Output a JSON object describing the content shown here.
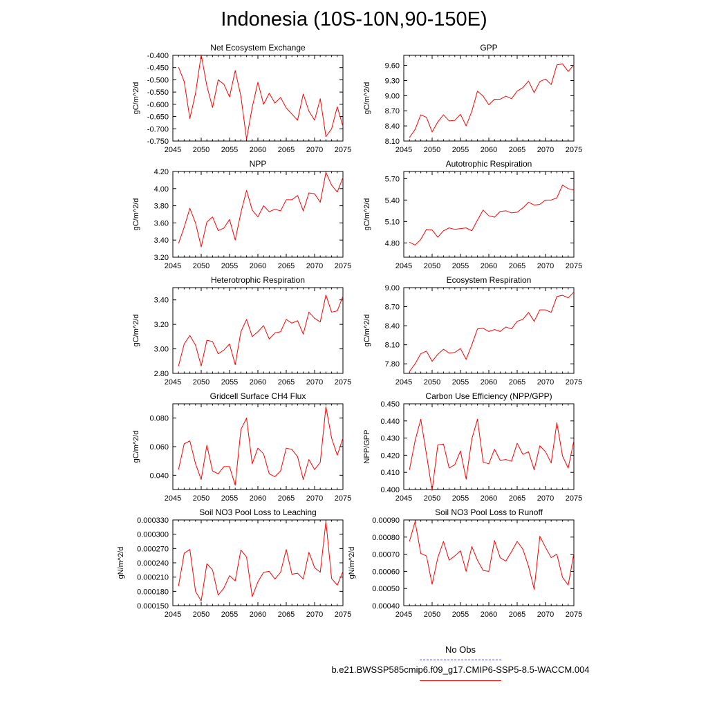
{
  "title": "Indonesia (10S-10N,90-150E)",
  "legend": {
    "obs_label": "No Obs",
    "obs_color": "#3a3ac8",
    "run_label": "b.e21.BWSSP585cmip6.f09_g17.CMIP6-SSP5-8.5-WACCM.004",
    "run_color": "#ff0000"
  },
  "chart_data": [
    {
      "type": "line",
      "title": "Net Ecosystem Exchange",
      "ylabel": "gC/m^2/d",
      "xlabel": "",
      "xlim": [
        2045,
        2075
      ],
      "xticks": [
        "2045",
        "2050",
        "2055",
        "2060",
        "2065",
        "2070",
        "2075"
      ],
      "ylim": [
        -0.75,
        -0.4
      ],
      "yticks": [
        "-0.750",
        "-0.700",
        "-0.650",
        "-0.600",
        "-0.550",
        "-0.500",
        "-0.450",
        "-0.400"
      ],
      "x": [
        2046,
        2047,
        2048,
        2049,
        2050,
        2051,
        2052,
        2053,
        2054,
        2055,
        2056,
        2057,
        2058,
        2059,
        2060,
        2061,
        2062,
        2063,
        2064,
        2065,
        2066,
        2067,
        2068,
        2069,
        2070,
        2071,
        2072,
        2073,
        2074,
        2075
      ],
      "series": [
        {
          "name": "b.e21.BWSSP585cmip6.f09_g17.CMIP6-SSP5-8.5-WACCM.004",
          "values": [
            -0.448,
            -0.507,
            -0.658,
            -0.555,
            -0.398,
            -0.525,
            -0.613,
            -0.5,
            -0.518,
            -0.57,
            -0.462,
            -0.567,
            -0.742,
            -0.612,
            -0.51,
            -0.6,
            -0.555,
            -0.595,
            -0.572,
            -0.615,
            -0.64,
            -0.665,
            -0.558,
            -0.628,
            -0.665,
            -0.577,
            -0.732,
            -0.7,
            -0.61,
            -0.69
          ]
        }
      ]
    },
    {
      "type": "line",
      "title": "GPP",
      "ylabel": "gC/m^2/d",
      "xlabel": "",
      "xlim": [
        2045,
        2075
      ],
      "xticks": [
        "2045",
        "2050",
        "2055",
        "2060",
        "2065",
        "2070",
        "2075"
      ],
      "ylim": [
        8.1,
        9.8
      ],
      "yticks": [
        "8.10",
        "8.40",
        "8.70",
        "9.00",
        "9.30",
        "9.60"
      ],
      "x": [
        2046,
        2047,
        2048,
        2049,
        2050,
        2051,
        2052,
        2053,
        2054,
        2055,
        2056,
        2057,
        2058,
        2059,
        2060,
        2061,
        2062,
        2063,
        2064,
        2065,
        2066,
        2067,
        2068,
        2069,
        2070,
        2071,
        2072,
        2073,
        2074,
        2075
      ],
      "series": [
        {
          "name": "b.e21.BWSSP585cmip6.f09_g17.CMIP6-SSP5-8.5-WACCM.004",
          "values": [
            8.17,
            8.33,
            8.62,
            8.57,
            8.28,
            8.48,
            8.62,
            8.5,
            8.51,
            8.63,
            8.4,
            8.69,
            9.09,
            8.99,
            8.82,
            8.93,
            8.93,
            8.99,
            8.94,
            9.09,
            9.16,
            9.29,
            9.06,
            9.28,
            9.33,
            9.22,
            9.61,
            9.63,
            9.48,
            9.61
          ]
        }
      ]
    },
    {
      "type": "line",
      "title": "NPP",
      "ylabel": "gC/m^2/d",
      "xlabel": "",
      "xlim": [
        2045,
        2075
      ],
      "xticks": [
        "2045",
        "2050",
        "2055",
        "2060",
        "2065",
        "2070",
        "2075"
      ],
      "ylim": [
        3.2,
        4.2
      ],
      "yticks": [
        "3.20",
        "3.40",
        "3.60",
        "3.80",
        "4.00",
        "4.20"
      ],
      "x": [
        2046,
        2047,
        2048,
        2049,
        2050,
        2051,
        2052,
        2053,
        2054,
        2055,
        2056,
        2057,
        2058,
        2059,
        2060,
        2061,
        2062,
        2063,
        2064,
        2065,
        2066,
        2067,
        2068,
        2069,
        2070,
        2071,
        2072,
        2073,
        2074,
        2075
      ],
      "series": [
        {
          "name": "b.e21.BWSSP585cmip6.f09_g17.CMIP6-SSP5-8.5-WACCM.004",
          "values": [
            3.36,
            3.55,
            3.77,
            3.6,
            3.32,
            3.61,
            3.67,
            3.51,
            3.54,
            3.64,
            3.4,
            3.72,
            3.98,
            3.75,
            3.67,
            3.8,
            3.73,
            3.76,
            3.74,
            3.87,
            3.87,
            3.92,
            3.74,
            3.95,
            3.94,
            3.84,
            4.19,
            4.04,
            3.96,
            4.13
          ]
        }
      ]
    },
    {
      "type": "line",
      "title": "Autotrophic Respiration",
      "ylabel": "gC/m^2/d",
      "xlabel": "",
      "xlim": [
        2045,
        2075
      ],
      "xticks": [
        "2045",
        "2050",
        "2055",
        "2060",
        "2065",
        "2070",
        "2075"
      ],
      "ylim": [
        4.6,
        5.8
      ],
      "yticks": [
        "4.80",
        "5.10",
        "5.40",
        "5.70"
      ],
      "x": [
        2046,
        2047,
        2048,
        2049,
        2050,
        2051,
        2052,
        2053,
        2054,
        2055,
        2056,
        2057,
        2058,
        2059,
        2060,
        2061,
        2062,
        2063,
        2064,
        2065,
        2066,
        2067,
        2068,
        2069,
        2070,
        2071,
        2072,
        2073,
        2074,
        2075
      ],
      "series": [
        {
          "name": "b.e21.BWSSP585cmip6.f09_g17.CMIP6-SSP5-8.5-WACCM.004",
          "values": [
            4.81,
            4.77,
            4.85,
            4.99,
            4.98,
            4.88,
            4.97,
            5.01,
            4.99,
            5.0,
            5.01,
            4.97,
            5.12,
            5.26,
            5.18,
            5.16,
            5.24,
            5.25,
            5.22,
            5.23,
            5.29,
            5.37,
            5.33,
            5.34,
            5.4,
            5.4,
            5.43,
            5.61,
            5.56,
            5.54
          ]
        }
      ]
    },
    {
      "type": "line",
      "title": "Heterotrophic Respiration",
      "ylabel": "gC/m^2/d",
      "xlabel": "",
      "xlim": [
        2045,
        2075
      ],
      "xticks": [
        "2045",
        "2050",
        "2055",
        "2060",
        "2065",
        "2070",
        "2075"
      ],
      "ylim": [
        2.8,
        3.5
      ],
      "yticks": [
        "2.80",
        "3.00",
        "3.20",
        "3.40"
      ],
      "x": [
        2046,
        2047,
        2048,
        2049,
        2050,
        2051,
        2052,
        2053,
        2054,
        2055,
        2056,
        2057,
        2058,
        2059,
        2060,
        2061,
        2062,
        2063,
        2064,
        2065,
        2066,
        2067,
        2068,
        2069,
        2070,
        2071,
        2072,
        2073,
        2074,
        2075
      ],
      "series": [
        {
          "name": "b.e21.BWSSP585cmip6.f09_g17.CMIP6-SSP5-8.5-WACCM.004",
          "values": [
            2.86,
            3.04,
            3.11,
            3.03,
            2.86,
            3.07,
            3.06,
            2.96,
            2.99,
            3.04,
            2.87,
            3.14,
            3.24,
            3.1,
            3.14,
            3.19,
            3.08,
            3.13,
            3.14,
            3.24,
            3.21,
            3.23,
            3.12,
            3.3,
            3.25,
            3.22,
            3.44,
            3.3,
            3.31,
            3.43
          ]
        }
      ]
    },
    {
      "type": "line",
      "title": "Ecosystem Respiration",
      "ylabel": "gC/m^2/d",
      "xlabel": "",
      "xlim": [
        2045,
        2075
      ],
      "xticks": [
        "2045",
        "2050",
        "2055",
        "2060",
        "2065",
        "2070",
        "2075"
      ],
      "ylim": [
        7.65,
        9.0
      ],
      "yticks": [
        "7.80",
        "8.10",
        "8.40",
        "8.70",
        "9.00"
      ],
      "x": [
        2046,
        2047,
        2048,
        2049,
        2050,
        2051,
        2052,
        2053,
        2054,
        2055,
        2056,
        2057,
        2058,
        2059,
        2060,
        2061,
        2062,
        2063,
        2064,
        2065,
        2066,
        2067,
        2068,
        2069,
        2070,
        2071,
        2072,
        2073,
        2074,
        2075
      ],
      "series": [
        {
          "name": "b.e21.BWSSP585cmip6.f09_g17.CMIP6-SSP5-8.5-WACCM.004",
          "values": [
            7.68,
            7.8,
            7.96,
            8.0,
            7.84,
            7.95,
            8.03,
            7.97,
            7.98,
            8.04,
            7.87,
            8.1,
            8.35,
            8.36,
            8.31,
            8.34,
            8.31,
            8.38,
            8.35,
            8.47,
            8.5,
            8.61,
            8.47,
            8.65,
            8.65,
            8.61,
            8.86,
            8.88,
            8.84,
            8.93
          ]
        }
      ]
    },
    {
      "type": "line",
      "title": "Gridcell Surface CH4 Flux",
      "ylabel": "gC/m^2/d",
      "xlabel": "",
      "xlim": [
        2045,
        2075
      ],
      "xticks": [
        "2045",
        "2050",
        "2055",
        "2060",
        "2065",
        "2070",
        "2075"
      ],
      "ylim": [
        0.03,
        0.09
      ],
      "yticks": [
        "0.040",
        "0.060",
        "0.080"
      ],
      "x": [
        2046,
        2047,
        2048,
        2049,
        2050,
        2051,
        2052,
        2053,
        2054,
        2055,
        2056,
        2057,
        2058,
        2059,
        2060,
        2061,
        2062,
        2063,
        2064,
        2065,
        2066,
        2067,
        2068,
        2069,
        2070,
        2071,
        2072,
        2073,
        2074,
        2075
      ],
      "series": [
        {
          "name": "b.e21.BWSSP585cmip6.f09_g17.CMIP6-SSP5-8.5-WACCM.004",
          "values": [
            0.044,
            0.062,
            0.064,
            0.048,
            0.037,
            0.061,
            0.043,
            0.041,
            0.046,
            0.046,
            0.033,
            0.072,
            0.08,
            0.048,
            0.059,
            0.055,
            0.041,
            0.039,
            0.043,
            0.059,
            0.058,
            0.053,
            0.037,
            0.051,
            0.044,
            0.049,
            0.088,
            0.066,
            0.054,
            0.066
          ]
        }
      ]
    },
    {
      "type": "line",
      "title": "Carbon Use Efficiency (NPP/GPP)",
      "ylabel": "NPP/GPP",
      "xlabel": "",
      "xlim": [
        2045,
        2075
      ],
      "xticks": [
        "2045",
        "2050",
        "2055",
        "2060",
        "2065",
        "2070",
        "2075"
      ],
      "ylim": [
        0.4,
        0.45
      ],
      "yticks": [
        "0.400",
        "0.410",
        "0.420",
        "0.430",
        "0.440",
        "0.450"
      ],
      "x": [
        2046,
        2047,
        2048,
        2049,
        2050,
        2051,
        2052,
        2053,
        2054,
        2055,
        2056,
        2057,
        2058,
        2059,
        2060,
        2061,
        2062,
        2063,
        2064,
        2065,
        2066,
        2067,
        2068,
        2069,
        2070,
        2071,
        2072,
        2073,
        2074,
        2075
      ],
      "series": [
        {
          "name": "b.e21.BWSSP585cmip6.f09_g17.CMIP6-SSP5-8.5-WACCM.004",
          "values": [
            0.4115,
            0.4285,
            0.441,
            0.4205,
            0.3995,
            0.426,
            0.4265,
            0.4125,
            0.4145,
            0.4225,
            0.406,
            0.4295,
            0.441,
            0.416,
            0.415,
            0.4235,
            0.417,
            0.4175,
            0.4165,
            0.427,
            0.4205,
            0.422,
            0.4115,
            0.4255,
            0.422,
            0.4155,
            0.439,
            0.4195,
            0.4125,
            0.4285
          ]
        }
      ]
    },
    {
      "type": "line",
      "title": "Soil NO3 Pool Loss to Leaching",
      "ylabel": "gN/m^2/d",
      "xlabel": "",
      "xlim": [
        2045,
        2075
      ],
      "xticks": [
        "2045",
        "2050",
        "2055",
        "2060",
        "2065",
        "2070",
        "2075"
      ],
      "ylim": [
        0.00015,
        0.00033
      ],
      "yticks": [
        "0.000150",
        "0.000180",
        "0.000210",
        "0.000240",
        "0.000270",
        "0.000300",
        "0.000330"
      ],
      "x": [
        2046,
        2047,
        2048,
        2049,
        2050,
        2051,
        2052,
        2053,
        2054,
        2055,
        2056,
        2057,
        2058,
        2059,
        2060,
        2061,
        2062,
        2063,
        2064,
        2065,
        2066,
        2067,
        2068,
        2069,
        2070,
        2071,
        2072,
        2073,
        2074,
        2075
      ],
      "series": [
        {
          "name": "b.e21.BWSSP585cmip6.f09_g17.CMIP6-SSP5-8.5-WACCM.004",
          "values": [
            0.000191,
            0.00026,
            0.000268,
            0.00018,
            0.00016,
            0.000238,
            0.000225,
            0.000172,
            0.000187,
            0.000213,
            0.000202,
            0.000267,
            0.000252,
            0.000169,
            0.0002,
            0.00022,
            0.000222,
            0.000206,
            0.00022,
            0.000268,
            0.000216,
            0.000218,
            0.000206,
            0.000262,
            0.00023,
            0.00022,
            0.000327,
            0.000207,
            0.000193,
            0.000222
          ]
        }
      ]
    },
    {
      "type": "line",
      "title": "Soil NO3 Pool Loss to Runoff",
      "ylabel": "gN/m^2/d",
      "xlabel": "",
      "xlim": [
        2045,
        2075
      ],
      "xticks": [
        "2045",
        "2050",
        "2055",
        "2060",
        "2065",
        "2070",
        "2075"
      ],
      "ylim": [
        0.0004,
        0.0009
      ],
      "yticks": [
        "0.00040",
        "0.00050",
        "0.00060",
        "0.00070",
        "0.00080",
        "0.00090"
      ],
      "x": [
        2046,
        2047,
        2048,
        2049,
        2050,
        2051,
        2052,
        2053,
        2054,
        2055,
        2056,
        2057,
        2058,
        2059,
        2060,
        2061,
        2062,
        2063,
        2064,
        2065,
        2066,
        2067,
        2068,
        2069,
        2070,
        2071,
        2072,
        2073,
        2074,
        2075
      ],
      "series": [
        {
          "name": "b.e21.BWSSP585cmip6.f09_g17.CMIP6-SSP5-8.5-WACCM.004",
          "values": [
            0.000775,
            0.00089,
            0.000705,
            0.00069,
            0.000525,
            0.00068,
            0.000775,
            0.000665,
            0.00069,
            0.00072,
            0.0006,
            0.000745,
            0.000665,
            0.000605,
            0.0006,
            0.00078,
            0.00068,
            0.00066,
            0.000715,
            0.000775,
            0.00073,
            0.00063,
            0.000495,
            0.000805,
            0.00074,
            0.00068,
            0.0007,
            0.000565,
            0.00052,
            0.000705
          ]
        }
      ]
    }
  ]
}
